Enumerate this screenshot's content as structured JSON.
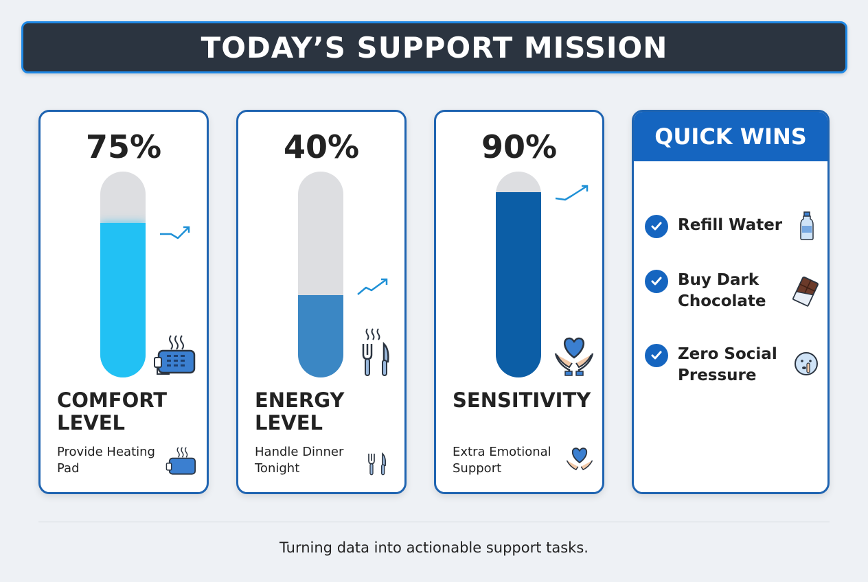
{
  "header": {
    "title": "TODAY’S SUPPORT MISSION"
  },
  "gauges": [
    {
      "percent_label": "75%",
      "level": 0.75,
      "name": "COMFORT LEVEL",
      "task": "Provide Heating Pad",
      "fill_color": "#22c1f4",
      "icon": "heating-pad-icon"
    },
    {
      "percent_label": "40%",
      "level": 0.4,
      "name": "ENERGY LEVEL",
      "task": "Handle Dinner Tonight",
      "fill_color": "#3b87c4",
      "icon": "fork-knife-icon"
    },
    {
      "percent_label": "90%",
      "level": 0.9,
      "name": "SENSITIVITY",
      "task": "Extra Emotional Support",
      "fill_color": "#0c5ea6",
      "icon": "heart-hands-icon"
    }
  ],
  "quick_wins": {
    "title": "QUICK WINS",
    "items": [
      {
        "label": "Refill Water",
        "icon": "water-bottle-icon"
      },
      {
        "label": "Buy Dark Chocolate",
        "icon": "chocolate-bar-icon"
      },
      {
        "label": "Zero Social Pressure",
        "icon": "shush-face-icon"
      }
    ],
    "accent_color": "#1565c0"
  },
  "footer": {
    "caption": "Turning data into actionable support tasks."
  }
}
